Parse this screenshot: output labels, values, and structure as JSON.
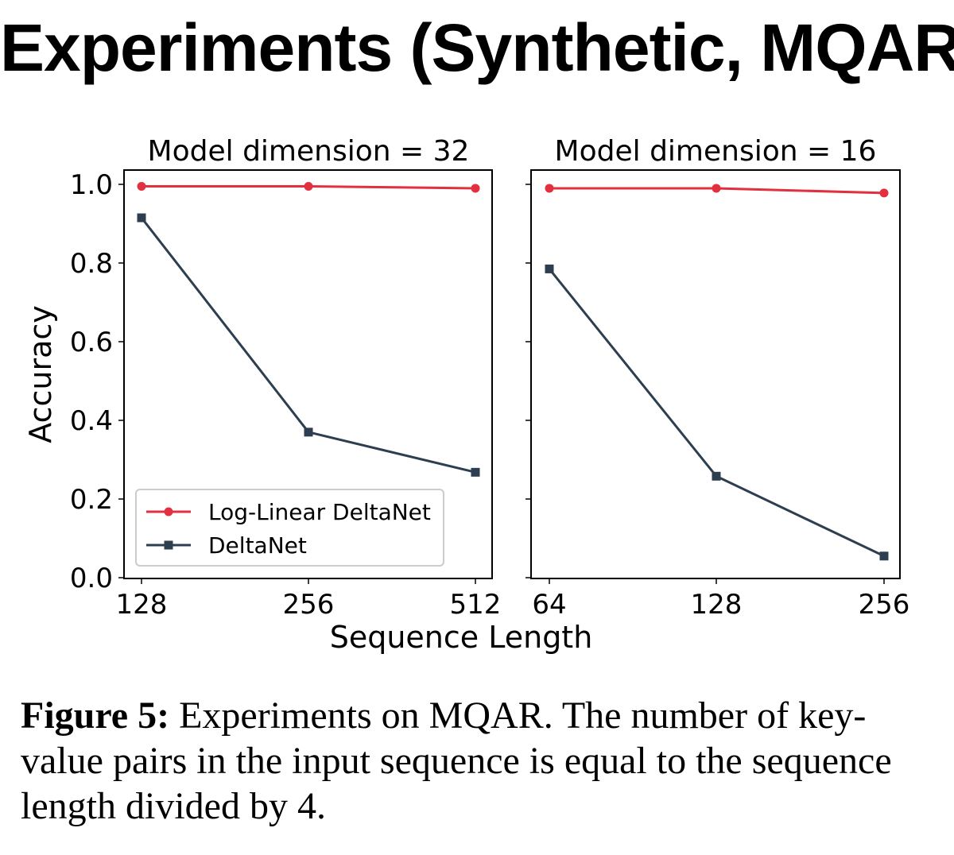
{
  "slide": {
    "title": "Experiments (Synthetic, MQAR)"
  },
  "chart_data": [
    {
      "type": "line",
      "title": "Model dimension = 32",
      "xlabel": "Sequence Length",
      "ylabel": "Accuracy",
      "categories": [
        "128",
        "256",
        "512"
      ],
      "ylim": [
        0.0,
        1.0
      ],
      "yticks": [
        "0.0",
        "0.2",
        "0.4",
        "0.6",
        "0.8",
        "1.0"
      ],
      "grid": false,
      "legend": "lower-left",
      "series": [
        {
          "name": "Log-Linear DeltaNet",
          "color": "#e2303f",
          "marker": "circle",
          "values": [
            0.995,
            0.995,
            0.99
          ]
        },
        {
          "name": "DeltaNet",
          "color": "#2c3e50",
          "marker": "square",
          "values": [
            0.915,
            0.37,
            0.268
          ]
        }
      ]
    },
    {
      "type": "line",
      "title": "Model dimension = 16",
      "xlabel": "Sequence Length",
      "ylabel": "",
      "categories": [
        "64",
        "128",
        "256"
      ],
      "ylim": [
        0.0,
        1.0
      ],
      "grid": false,
      "series": [
        {
          "name": "Log-Linear DeltaNet",
          "color": "#e2303f",
          "marker": "circle",
          "values": [
            0.99,
            0.99,
            0.978
          ]
        },
        {
          "name": "DeltaNet",
          "color": "#2c3e50",
          "marker": "square",
          "values": [
            0.785,
            0.258,
            0.055
          ]
        }
      ]
    }
  ],
  "caption": {
    "label": "Figure 5:",
    "text": " Experiments on MQAR. The number of key-value pairs in the input sequence is equal to the sequence length divided by 4."
  }
}
